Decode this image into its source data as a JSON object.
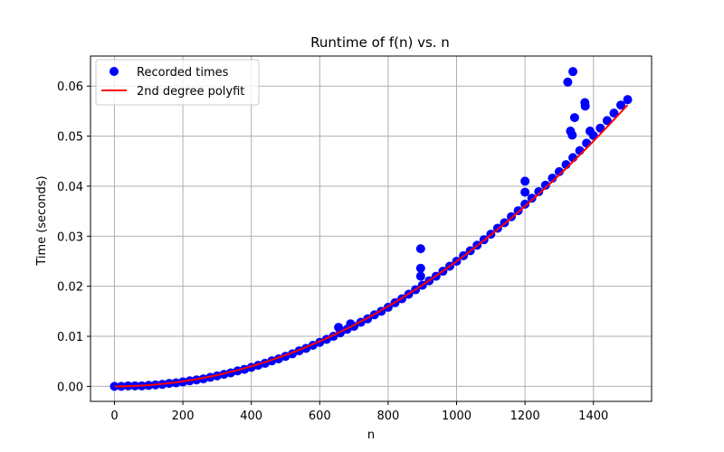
{
  "chart_data": {
    "type": "scatter",
    "title": "Runtime of f(n) vs. n",
    "xlabel": "n",
    "ylabel": "Time (seconds)",
    "xlim": [
      -70,
      1570
    ],
    "ylim": [
      -0.003,
      0.066
    ],
    "xticks": [
      0,
      200,
      400,
      600,
      800,
      1000,
      1200,
      1400
    ],
    "xtick_labels": [
      "0",
      "200",
      "400",
      "600",
      "800",
      "1000",
      "1200",
      "1400"
    ],
    "yticks": [
      0.0,
      0.01,
      0.02,
      0.03,
      0.04,
      0.05,
      0.06
    ],
    "ytick_labels": [
      "0.00",
      "0.01",
      "0.02",
      "0.03",
      "0.04",
      "0.05",
      "0.06"
    ],
    "grid": true,
    "legend_position": "top-left",
    "series": [
      {
        "name": "Recorded times",
        "kind": "scatter",
        "color": "#0000ff",
        "points": [
          [
            0,
            0.0
          ],
          [
            20,
            0.0
          ],
          [
            40,
            0.0001
          ],
          [
            60,
            0.0001
          ],
          [
            80,
            0.0001
          ],
          [
            100,
            0.0002
          ],
          [
            120,
            0.0003
          ],
          [
            140,
            0.0004
          ],
          [
            160,
            0.0006
          ],
          [
            180,
            0.0007
          ],
          [
            200,
            0.0009
          ],
          [
            220,
            0.0011
          ],
          [
            240,
            0.0013
          ],
          [
            260,
            0.0015
          ],
          [
            280,
            0.0018
          ],
          [
            300,
            0.0021
          ],
          [
            320,
            0.0024
          ],
          [
            340,
            0.0027
          ],
          [
            360,
            0.0031
          ],
          [
            380,
            0.0034
          ],
          [
            400,
            0.0038
          ],
          [
            420,
            0.0042
          ],
          [
            440,
            0.0046
          ],
          [
            460,
            0.0051
          ],
          [
            480,
            0.0055
          ],
          [
            500,
            0.006
          ],
          [
            520,
            0.0065
          ],
          [
            540,
            0.0071
          ],
          [
            560,
            0.0076
          ],
          [
            580,
            0.0082
          ],
          [
            600,
            0.0088
          ],
          [
            620,
            0.0094
          ],
          [
            640,
            0.01
          ],
          [
            660,
            0.0107
          ],
          [
            680,
            0.0114
          ],
          [
            700,
            0.012
          ],
          [
            720,
            0.0128
          ],
          [
            740,
            0.0135
          ],
          [
            760,
            0.0143
          ],
          [
            780,
            0.015
          ],
          [
            800,
            0.0158
          ],
          [
            820,
            0.0167
          ],
          [
            840,
            0.0175
          ],
          [
            860,
            0.0184
          ],
          [
            880,
            0.0193
          ],
          [
            900,
            0.0202
          ],
          [
            920,
            0.0211
          ],
          [
            940,
            0.022
          ],
          [
            960,
            0.023
          ],
          [
            980,
            0.024
          ],
          [
            1000,
            0.025
          ],
          [
            1020,
            0.0261
          ],
          [
            1040,
            0.0271
          ],
          [
            1060,
            0.0282
          ],
          [
            1080,
            0.0293
          ],
          [
            1100,
            0.0304
          ],
          [
            1120,
            0.0316
          ],
          [
            1140,
            0.0327
          ],
          [
            1160,
            0.0339
          ],
          [
            1180,
            0.0351
          ],
          [
            1200,
            0.0364
          ],
          [
            1220,
            0.0376
          ],
          [
            1240,
            0.0389
          ],
          [
            1260,
            0.0402
          ],
          [
            1280,
            0.0416
          ],
          [
            1300,
            0.0429
          ],
          [
            1320,
            0.0443
          ],
          [
            1340,
            0.0457
          ],
          [
            1360,
            0.0471
          ],
          [
            1380,
            0.0486
          ],
          [
            1400,
            0.0501
          ],
          [
            1420,
            0.0516
          ],
          [
            1440,
            0.0531
          ],
          [
            1460,
            0.0546
          ],
          [
            1480,
            0.0562
          ],
          [
            1500,
            0.0573
          ],
          [
            655,
            0.0118
          ],
          [
            690,
            0.0125
          ],
          [
            895,
            0.0275
          ],
          [
            895,
            0.0236
          ],
          [
            895,
            0.022
          ],
          [
            1200,
            0.041
          ],
          [
            1200,
            0.0388
          ],
          [
            1325,
            0.0608
          ],
          [
            1340,
            0.0629
          ],
          [
            1345,
            0.0537
          ],
          [
            1333,
            0.051
          ],
          [
            1338,
            0.0502
          ],
          [
            1375,
            0.0567
          ],
          [
            1376,
            0.056
          ],
          [
            1390,
            0.051
          ]
        ]
      },
      {
        "name": "2nd degree polyfit",
        "kind": "line",
        "color": "#ff0000",
        "coefficients": [
          2.5e-08,
          0.0,
          0.0
        ],
        "x_range": [
          0,
          1500
        ]
      }
    ]
  }
}
